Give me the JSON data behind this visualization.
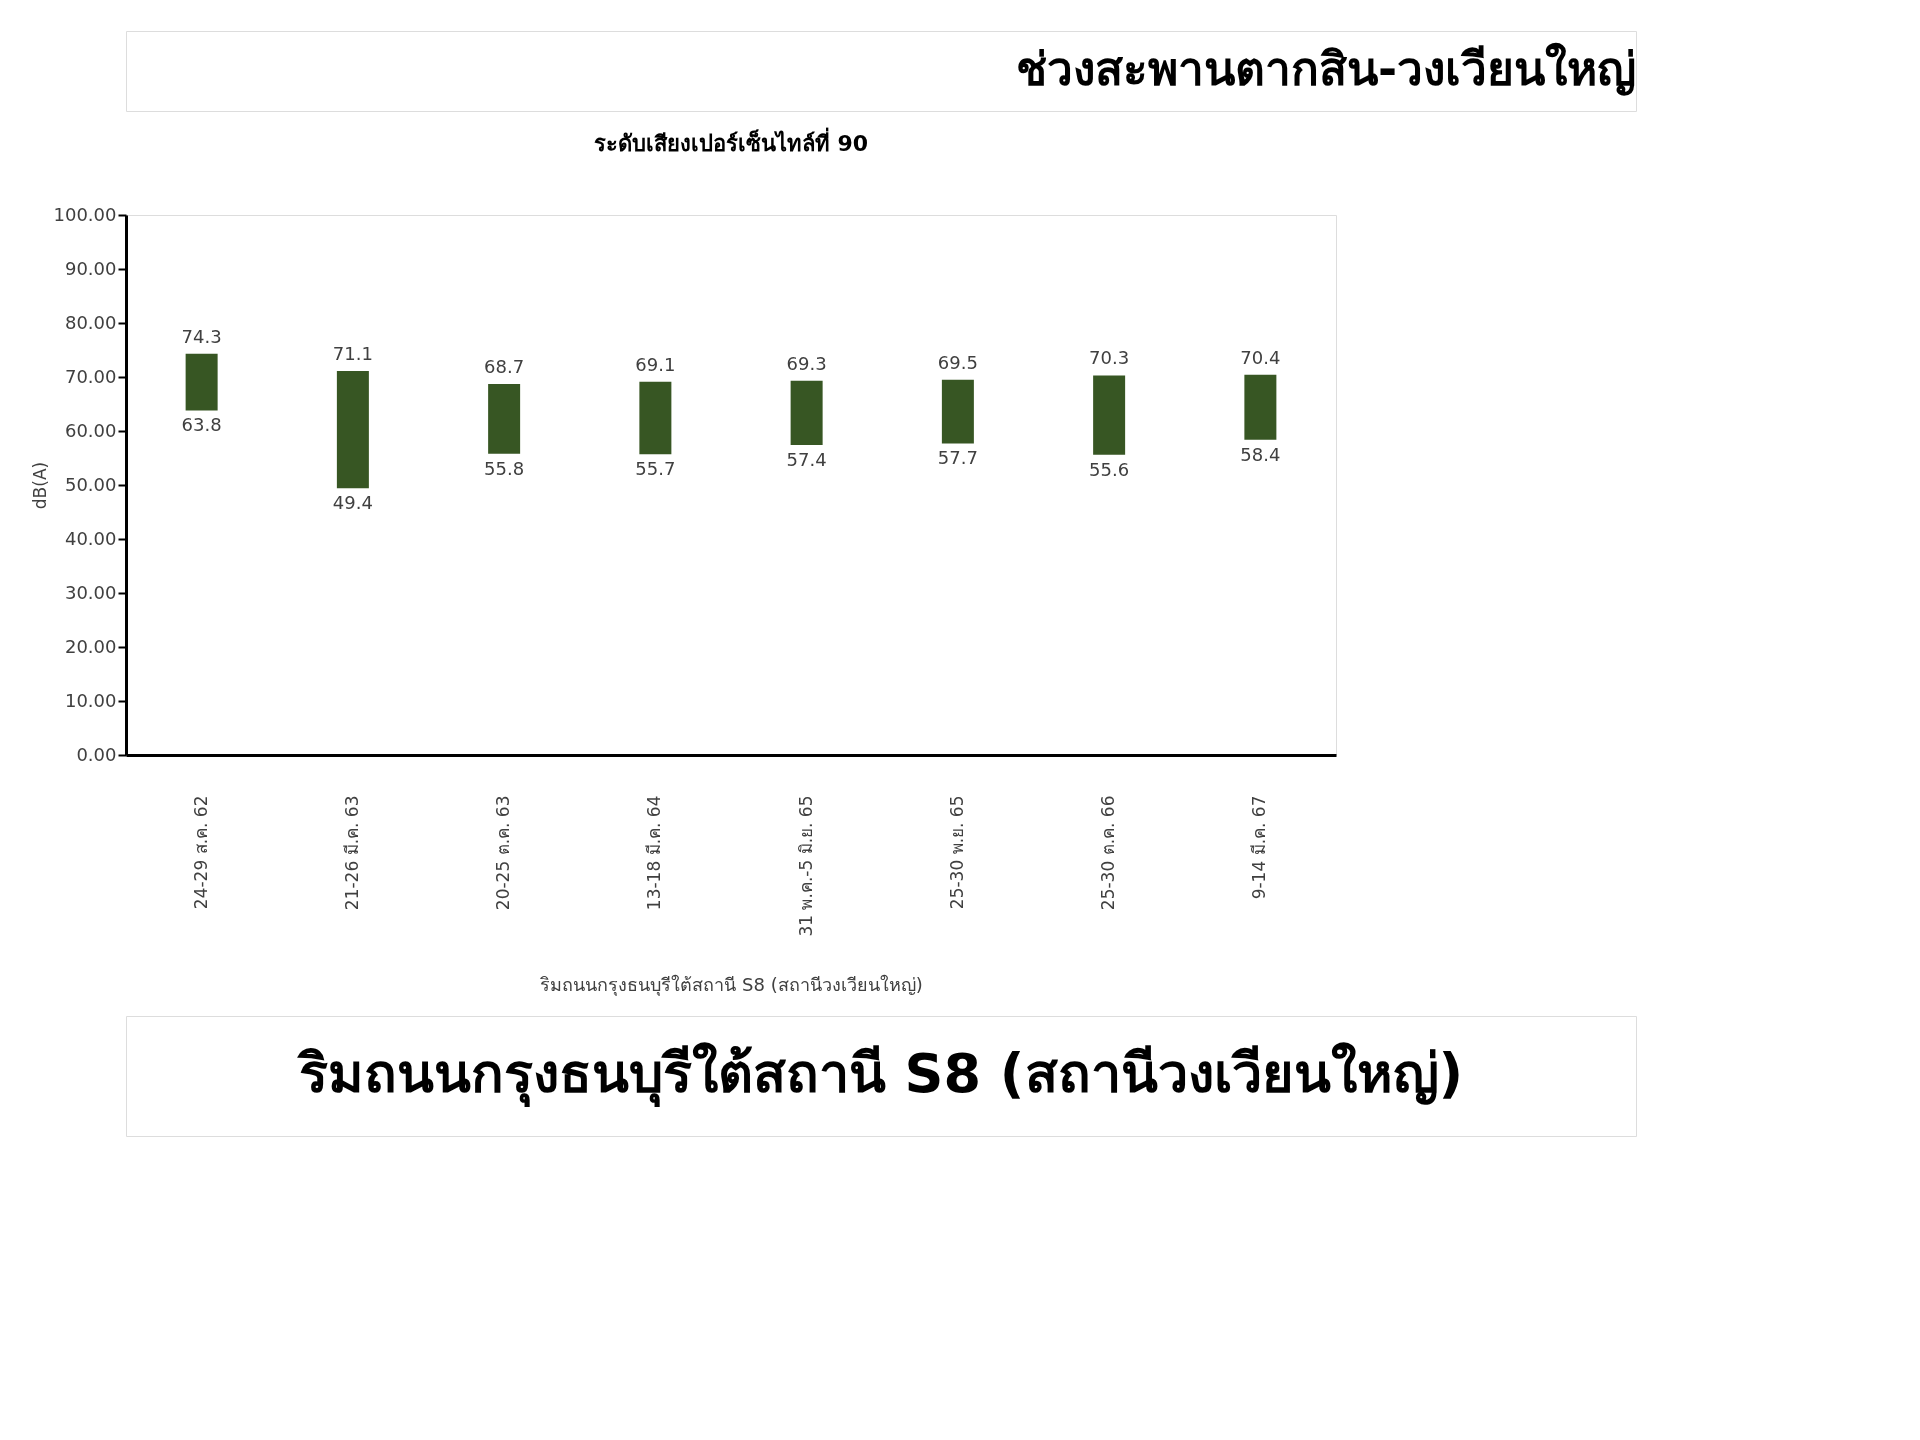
{
  "chart_data": {
    "type": "bar",
    "title": "ช่วงสะพานตากสิน-วงเวียนใหญ่",
    "subtitle": "ระดับเสียงเปอร์เซ็นไทล์ที่ 90",
    "ylabel": "dB(A)",
    "xlabel": "ริมถนนกรุงธนบุรีใต้สถานี S8 (สถานีวงเวียนใหญ่)",
    "categories": [
      "24-29 ส.ค. 62",
      "21-26 มี.ค. 63",
      "20-25 ต.ค. 63",
      "13-18 มี.ค. 64",
      "31 พ.ค.-5 มิ.ย. 65",
      "25-30 พ.ย. 65",
      "25-30 ต.ค. 66",
      "9-14 มี.ค. 67"
    ],
    "base": [
      63.8,
      49.4,
      55.8,
      55.7,
      57.4,
      57.7,
      55.6,
      58.4
    ],
    "values": [
      10.5,
      21.7,
      12.9,
      13.4,
      11.9,
      11.8,
      14.7,
      12.0
    ],
    "color": "#375623",
    "ylim": [
      0,
      100
    ],
    "yticks": [
      {
        "value": 0,
        "label": "0.00"
      },
      {
        "value": 10,
        "label": "10.00"
      },
      {
        "value": 20,
        "label": "20.00"
      },
      {
        "value": 30,
        "label": "30.00"
      },
      {
        "value": 40,
        "label": "40.00"
      },
      {
        "value": 50,
        "label": "50.00"
      },
      {
        "value": 60,
        "label": "60.00"
      },
      {
        "value": 70,
        "label": "70.00"
      },
      {
        "value": 80,
        "label": "80.00"
      },
      {
        "value": 90,
        "label": "90.00"
      },
      {
        "value": 100,
        "label": "100.00"
      }
    ],
    "grid": false,
    "annotations": [
      {
        "text": "74.3",
        "x": "24-29 ส.ค. 62",
        "y": 74.3
      },
      {
        "text": "63.8",
        "x": "24-29 ส.ค. 62",
        "y": 63.8
      },
      {
        "text": "71.1",
        "x": "21-26 มี.ค. 63",
        "y": 71.1
      },
      {
        "text": "49.4",
        "x": "21-26 มี.ค. 63",
        "y": 49.4
      },
      {
        "text": "68.7",
        "x": "20-25 ต.ค. 63",
        "y": 68.7
      },
      {
        "text": "55.8",
        "x": "20-25 ต.ค. 63",
        "y": 55.8
      },
      {
        "text": "69.1",
        "x": "13-18 มี.ค. 64",
        "y": 69.1
      },
      {
        "text": "55.7",
        "x": "13-18 มี.ค. 64",
        "y": 55.7
      },
      {
        "text": "69.3",
        "x": "31 พ.ค.-5 มิ.ย. 65",
        "y": 69.3
      },
      {
        "text": "57.4",
        "x": "31 พ.ค.-5 มิ.ย. 65",
        "y": 57.4
      },
      {
        "text": "69.5",
        "x": "25-30 พ.ย. 65",
        "y": 69.5
      },
      {
        "text": "57.7",
        "x": "25-30 พ.ย. 65",
        "y": 57.7
      },
      {
        "text": "70.3",
        "x": "25-30 ต.ค. 66",
        "y": 70.3
      },
      {
        "text": "55.6",
        "x": "25-30 ต.ค. 66",
        "y": 55.6
      },
      {
        "text": "70.4",
        "x": "9-14 มี.ค. 67",
        "y": 70.4
      },
      {
        "text": "58.4",
        "x": "9-14 มี.ค. 67",
        "y": 58.4
      },
      "ริมถนนกรุงธนบุรีใต้สถานี S8 (สถานีวงเวียนใหญ่)"
    ]
  }
}
